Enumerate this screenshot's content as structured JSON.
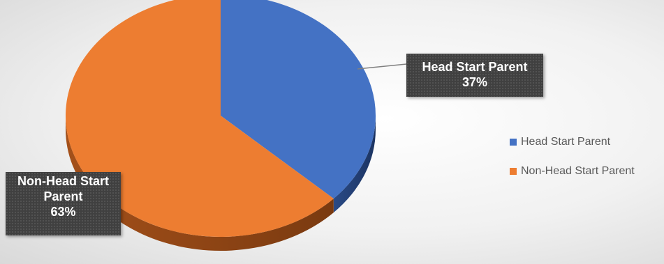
{
  "chart_data": {
    "type": "pie",
    "style": "3d",
    "title": "",
    "categories": [
      "Head Start Parent",
      "Non-Head Start Parent"
    ],
    "values": [
      37,
      63
    ],
    "unit": "%",
    "colors": [
      "#4472c4",
      "#ed7d31"
    ],
    "data_labels": [
      {
        "lines": [
          "Head Start Parent",
          "37%"
        ]
      },
      {
        "lines": [
          "Non-Head Start",
          "Parent",
          "63%"
        ]
      }
    ],
    "legend": {
      "position": "right",
      "entries": [
        {
          "label": "Head Start Parent",
          "color": "#4472c4"
        },
        {
          "label": "Non-Head Start Parent",
          "color": "#ed7d31"
        }
      ]
    }
  }
}
